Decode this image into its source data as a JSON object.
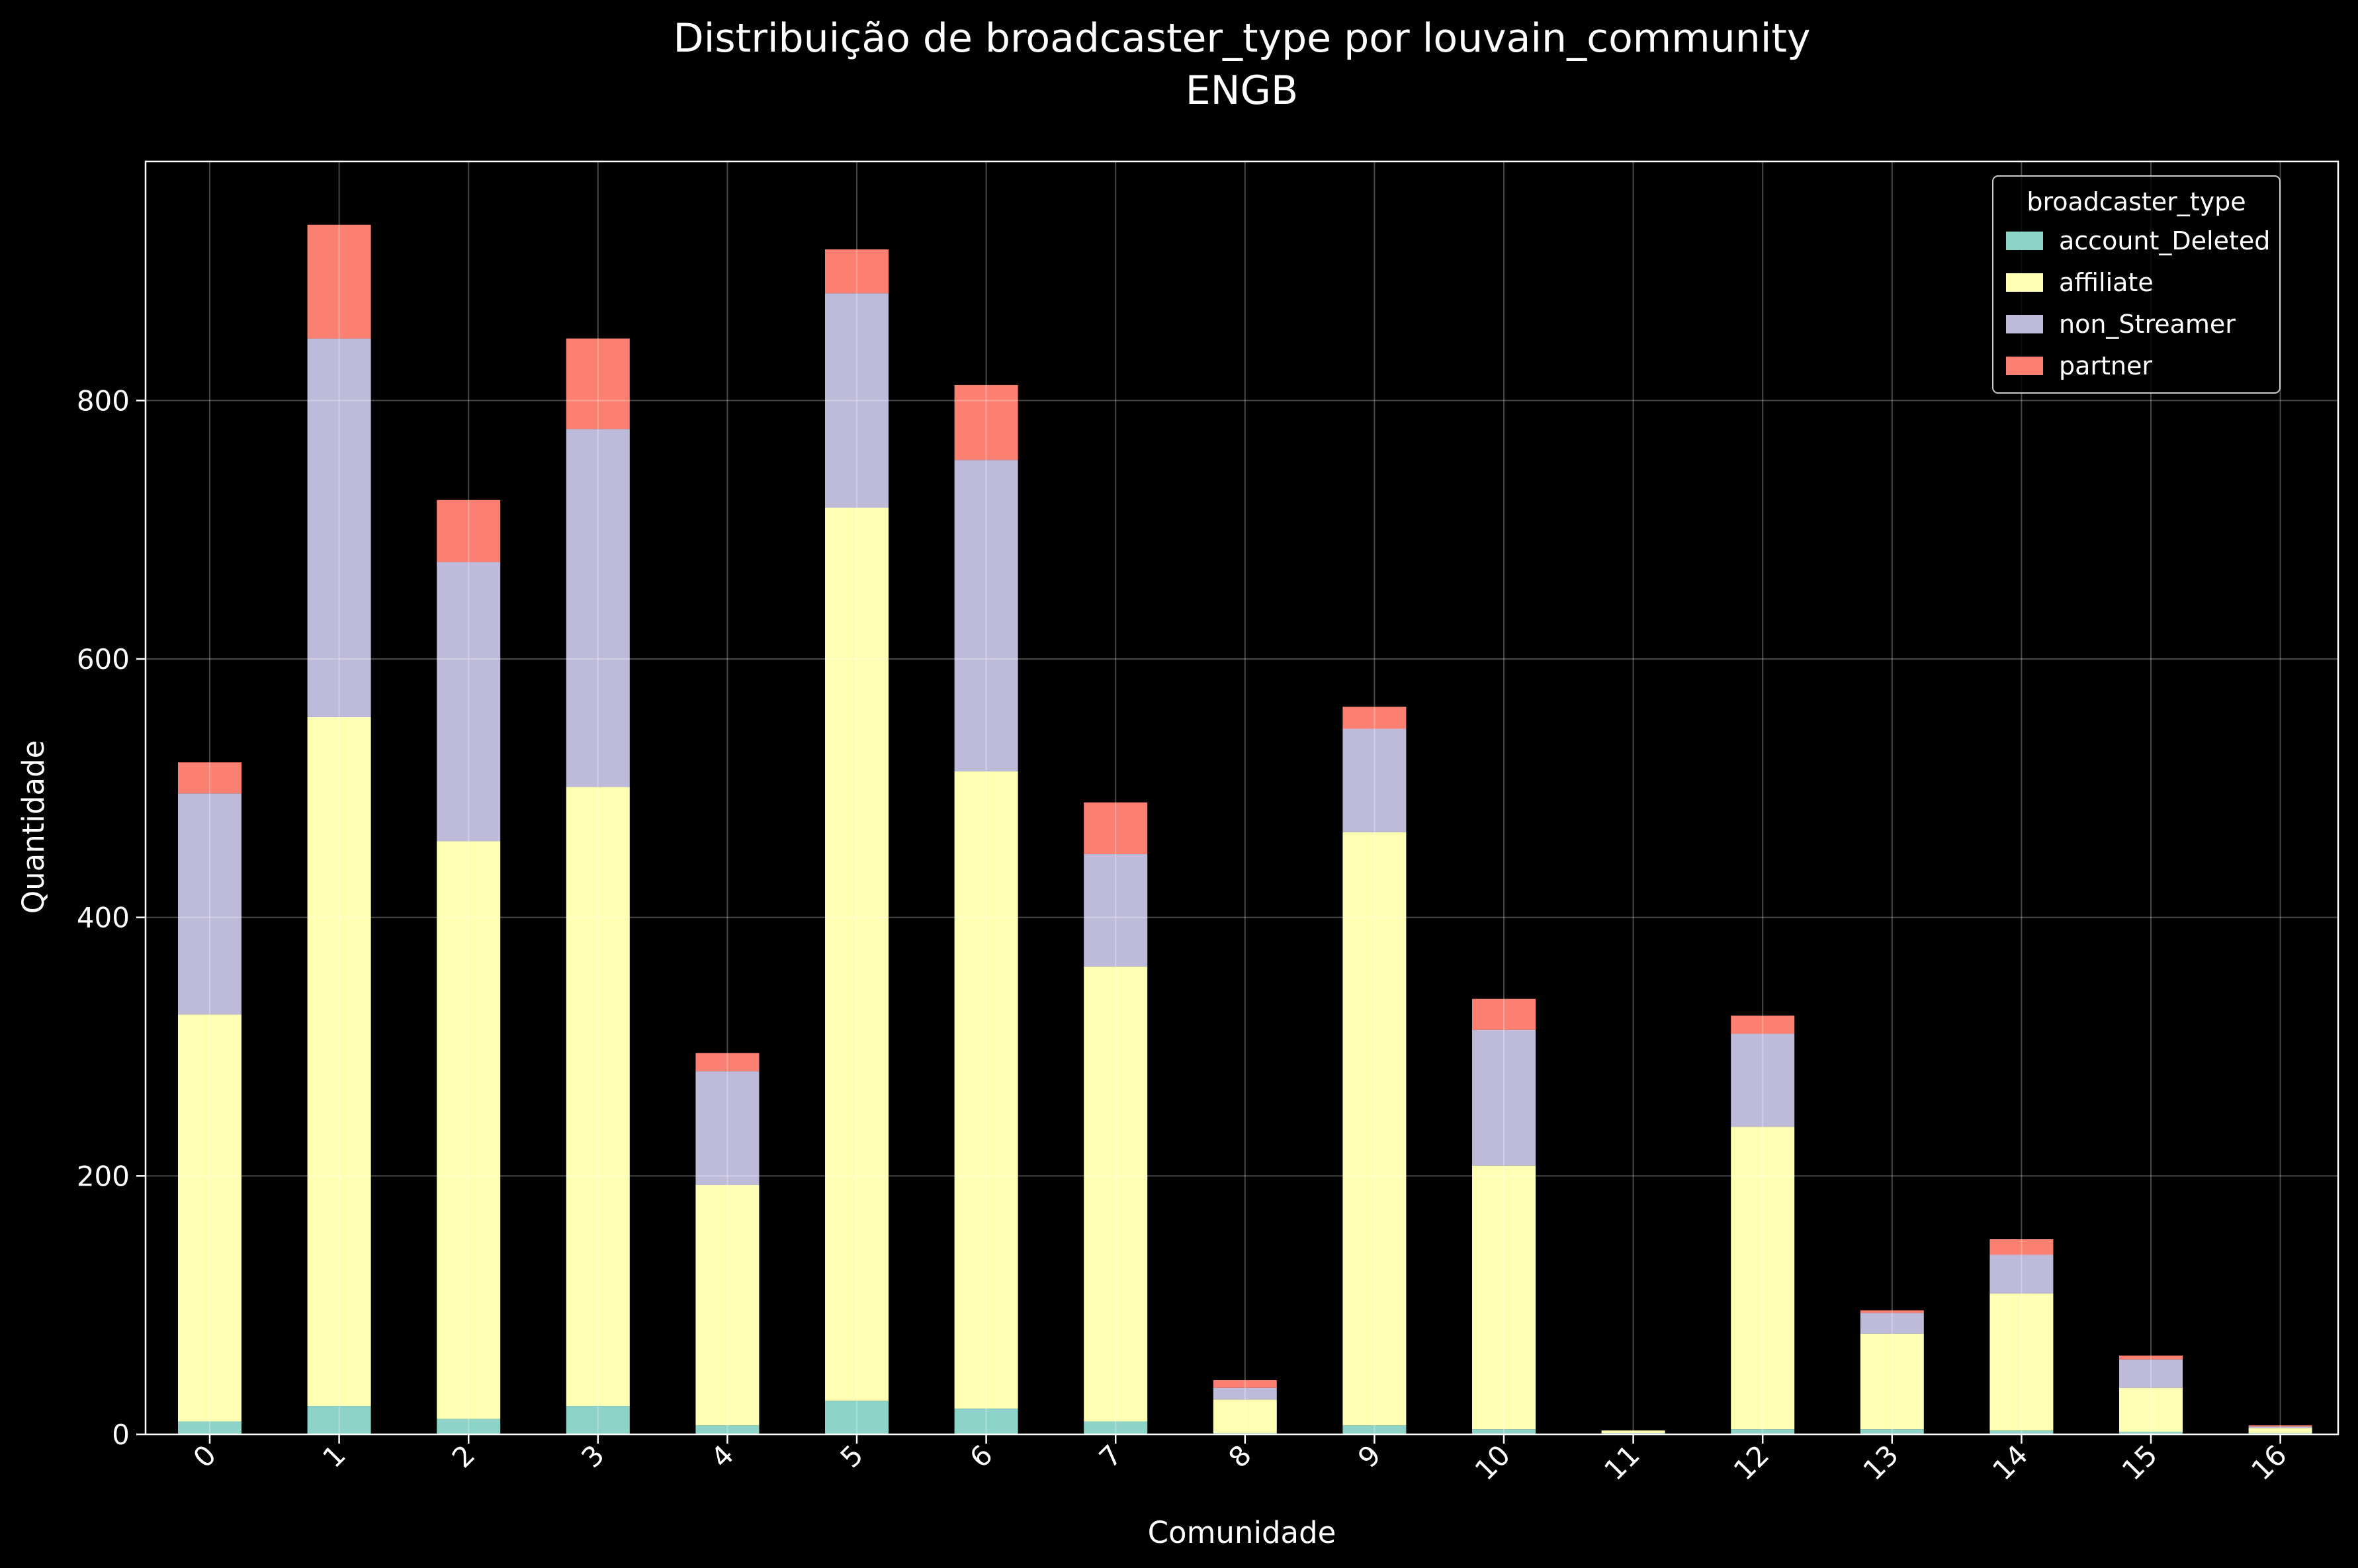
{
  "chart_data": {
    "type": "bar",
    "stacked": true,
    "title": "Distribuição de broadcaster_type por louvain_community",
    "subtitle": "ENGB",
    "xlabel": "Comunidade",
    "ylabel": "Quantidade",
    "ylim": [
      0,
      985
    ],
    "yticks": [
      0,
      200,
      400,
      600,
      800
    ],
    "grid": true,
    "legend_title": "broadcaster_type",
    "legend_position": "top-right",
    "categories": [
      "0",
      "1",
      "2",
      "3",
      "4",
      "5",
      "6",
      "7",
      "8",
      "9",
      "10",
      "11",
      "12",
      "13",
      "14",
      "15",
      "16"
    ],
    "series": [
      {
        "name": "account_Deleted",
        "color": "#8dd3c7",
        "values": [
          10,
          22,
          12,
          22,
          7,
          26,
          20,
          10,
          1,
          7,
          4,
          1,
          4,
          4,
          3,
          2,
          1
        ]
      },
      {
        "name": "affiliate",
        "color": "#ffffb3",
        "values": [
          315,
          533,
          447,
          479,
          186,
          691,
          493,
          352,
          26,
          459,
          204,
          2,
          234,
          74,
          106,
          34,
          4
        ]
      },
      {
        "name": "non_Streamer",
        "color": "#bebada",
        "values": [
          171,
          293,
          216,
          277,
          88,
          166,
          241,
          87,
          9,
          80,
          105,
          0,
          72,
          16,
          30,
          22,
          1
        ]
      },
      {
        "name": "partner",
        "color": "#fb8072",
        "values": [
          24,
          88,
          48,
          70,
          14,
          34,
          58,
          40,
          6,
          17,
          24,
          0,
          14,
          2,
          12,
          3,
          1
        ]
      }
    ]
  }
}
